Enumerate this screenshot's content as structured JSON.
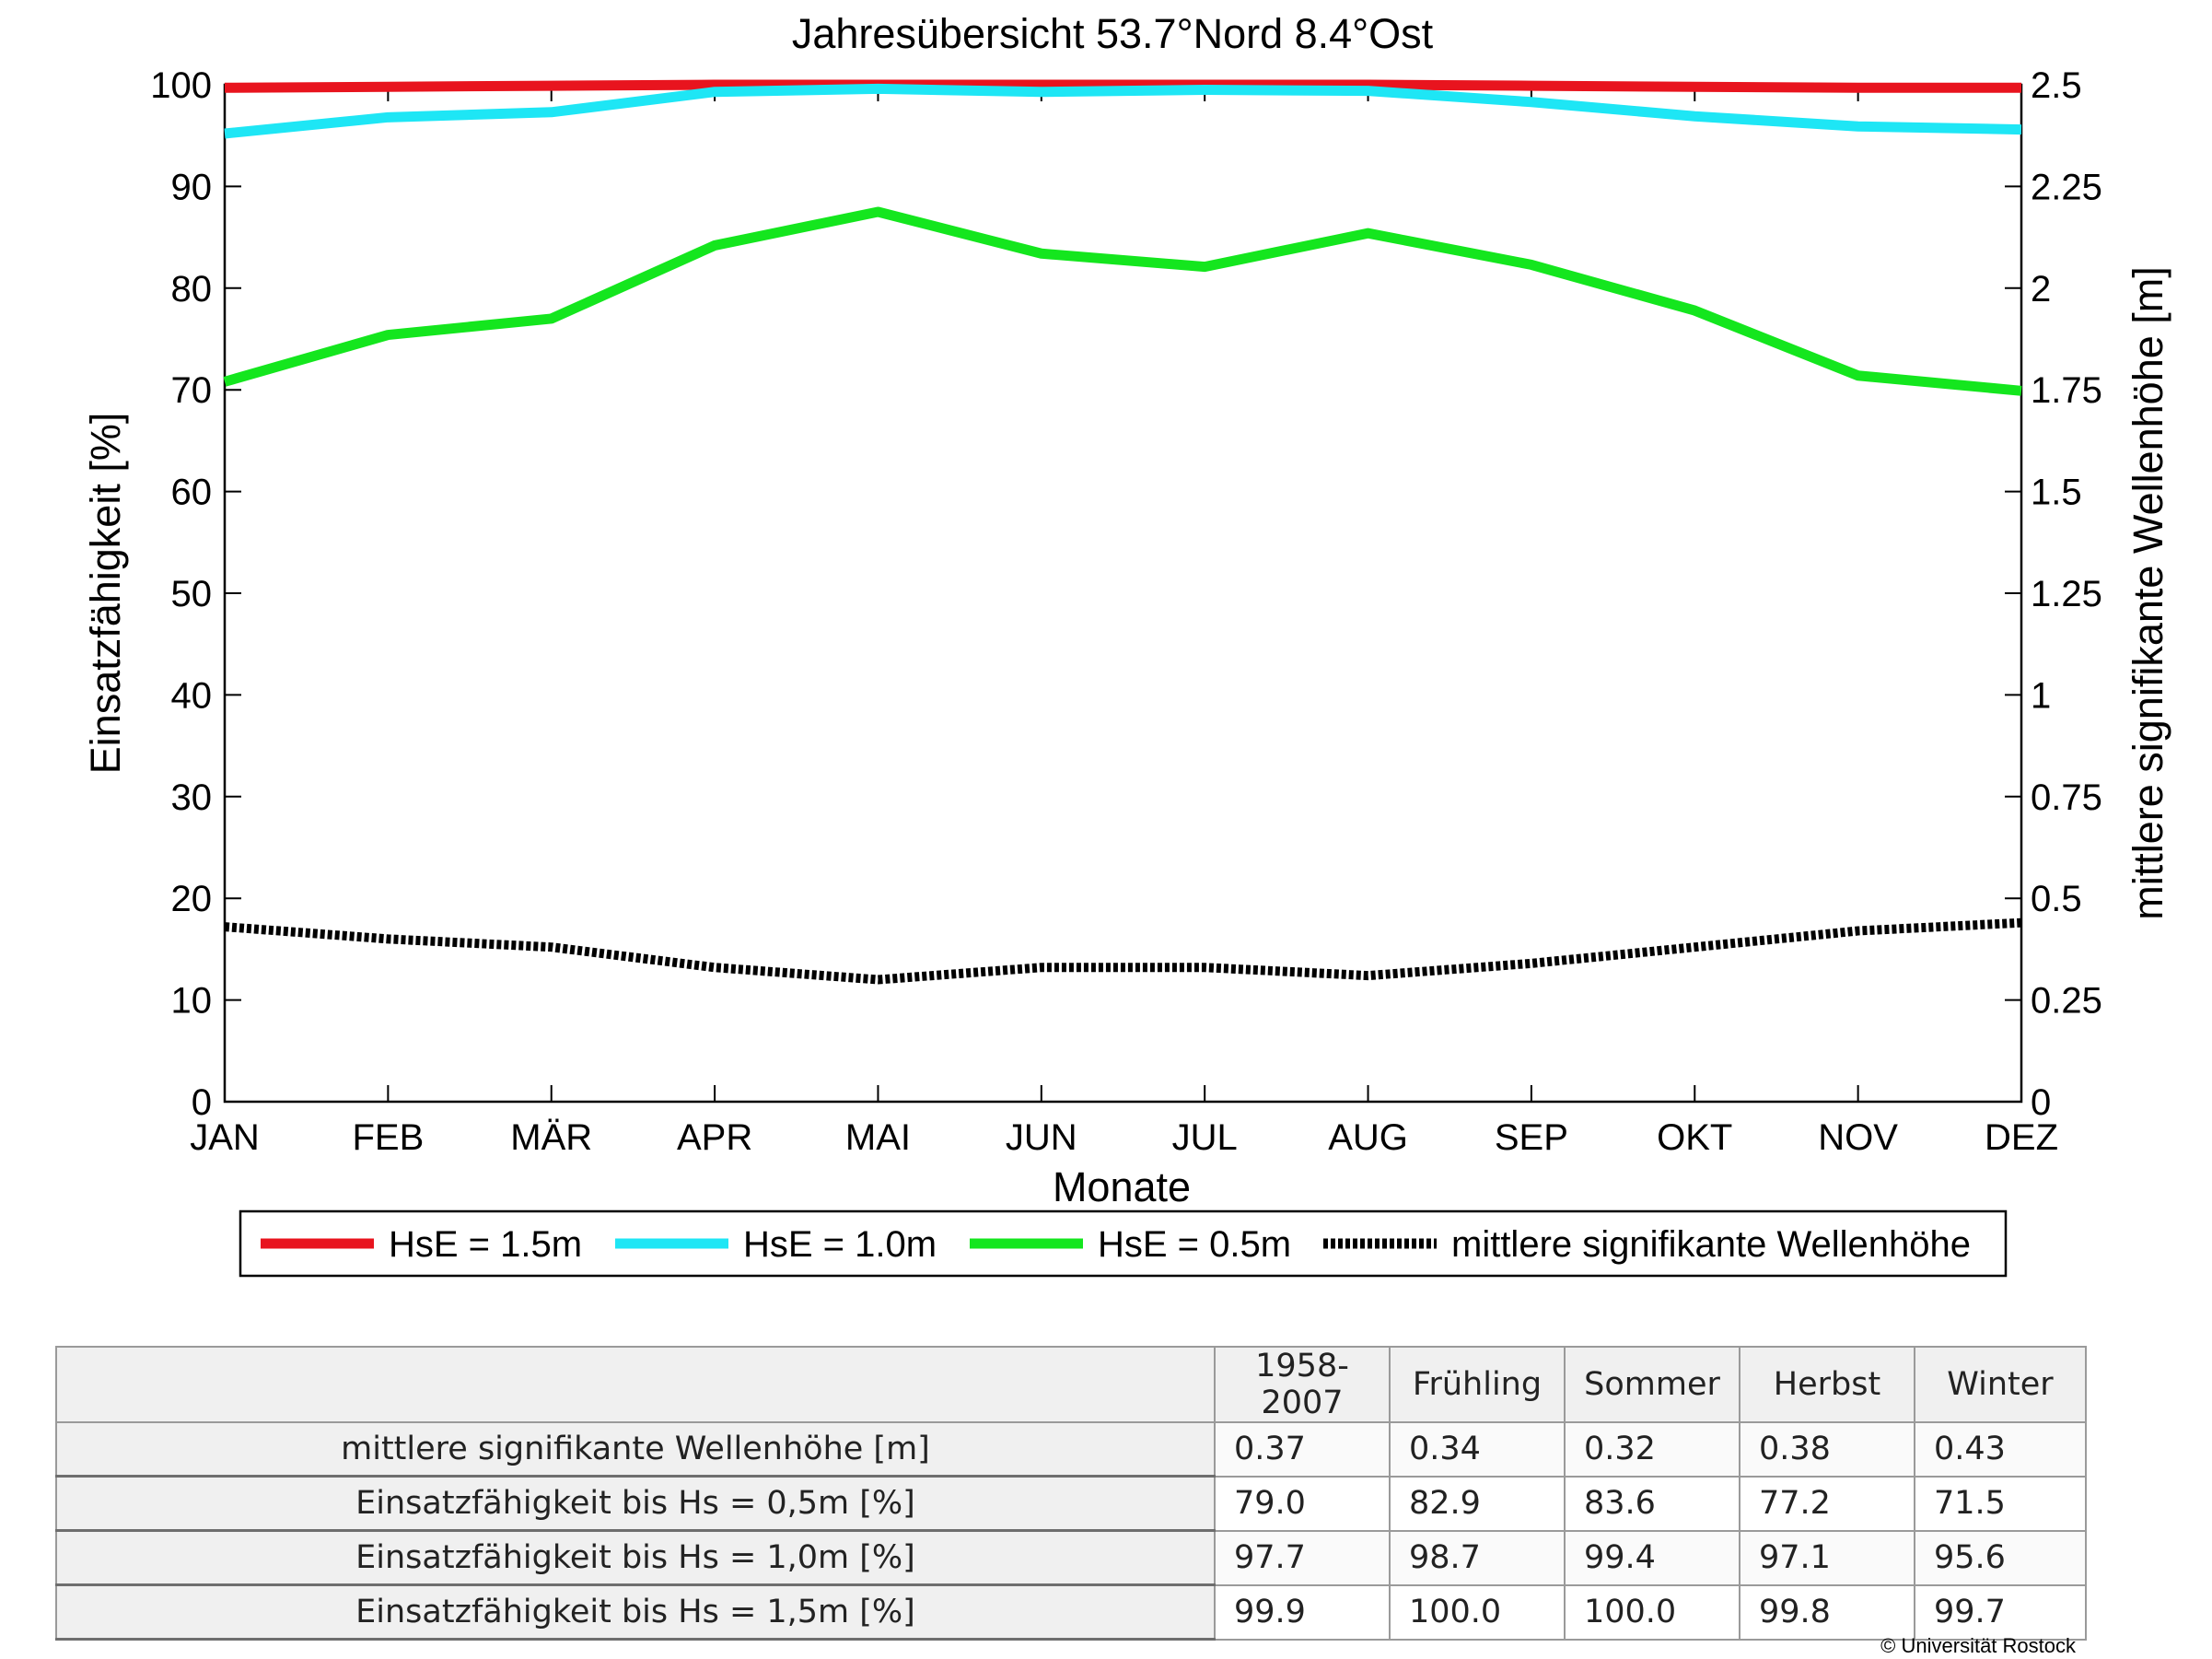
{
  "chart_data": {
    "type": "line",
    "title": "Jahresübersicht  53.7°Nord  8.4°Ost",
    "xlabel": "Monate",
    "ylabel": "Einsatzfähigkeit [%]",
    "y2label": "mittlere signifikante Wellenhöhe [m]",
    "categories": [
      "JAN",
      "FEB",
      "MÄR",
      "APR",
      "MAI",
      "JUN",
      "JUL",
      "AUG",
      "SEP",
      "OKT",
      "NOV",
      "DEZ"
    ],
    "ylim": [
      0,
      100
    ],
    "y2lim": [
      0,
      2.5
    ],
    "yticks": [
      "0",
      "10",
      "20",
      "30",
      "40",
      "50",
      "60",
      "70",
      "80",
      "90",
      "100"
    ],
    "y2ticks": [
      "0",
      "0.25",
      "0.5",
      "0.75",
      "1",
      "1.25",
      "1.5",
      "1.75",
      "2",
      "2.25",
      "2.5"
    ],
    "grid": false,
    "legend_position": "bottom",
    "series": [
      {
        "name": "HsE = 1.5m",
        "axis": "left",
        "color": "#e8141e",
        "style": "solid",
        "values": [
          99.7,
          99.8,
          99.9,
          100,
          100,
          100,
          100,
          100,
          99.9,
          99.8,
          99.7,
          99.7
        ]
      },
      {
        "name": "HsE = 1.0m",
        "axis": "left",
        "color": "#1ee6f5",
        "style": "solid",
        "values": [
          95.2,
          96.8,
          97.3,
          99.3,
          99.6,
          99.3,
          99.5,
          99.4,
          98.3,
          96.9,
          95.9,
          95.6
        ]
      },
      {
        "name": "HsE = 0.5m",
        "axis": "left",
        "color": "#14e61e",
        "style": "solid",
        "values": [
          70.8,
          75.4,
          77.0,
          84.2,
          87.5,
          83.4,
          82.1,
          85.4,
          82.3,
          77.8,
          71.4,
          69.9
        ]
      },
      {
        "name": "mittlere signifikante Wellenhöhe",
        "axis": "right",
        "color": "#000000",
        "style": "dotted",
        "values": [
          0.43,
          0.4,
          0.38,
          0.33,
          0.3,
          0.33,
          0.33,
          0.31,
          0.34,
          0.38,
          0.42,
          0.44
        ]
      }
    ]
  },
  "table": {
    "headers": [
      "",
      "1958-2007",
      "Frühling",
      "Sommer",
      "Herbst",
      "Winter"
    ],
    "rows": [
      {
        "label": "mittlere signifikante Wellenhöhe [m]",
        "values": [
          "0.37",
          "0.34",
          "0.32",
          "0.38",
          "0.43"
        ]
      },
      {
        "label": "Einsatzfähigkeit bis Hs = 0,5m [%]",
        "values": [
          "79.0",
          "82.9",
          "83.6",
          "77.2",
          "71.5"
        ]
      },
      {
        "label": "Einsatzfähigkeit bis Hs = 1,0m [%]",
        "values": [
          "97.7",
          "98.7",
          "99.4",
          "97.1",
          "95.6"
        ]
      },
      {
        "label": "Einsatzfähigkeit bis Hs = 1,5m [%]",
        "values": [
          "99.9",
          "100.0",
          "100.0",
          "99.8",
          "99.7"
        ]
      }
    ]
  },
  "copyright": "© Universität Rostock"
}
